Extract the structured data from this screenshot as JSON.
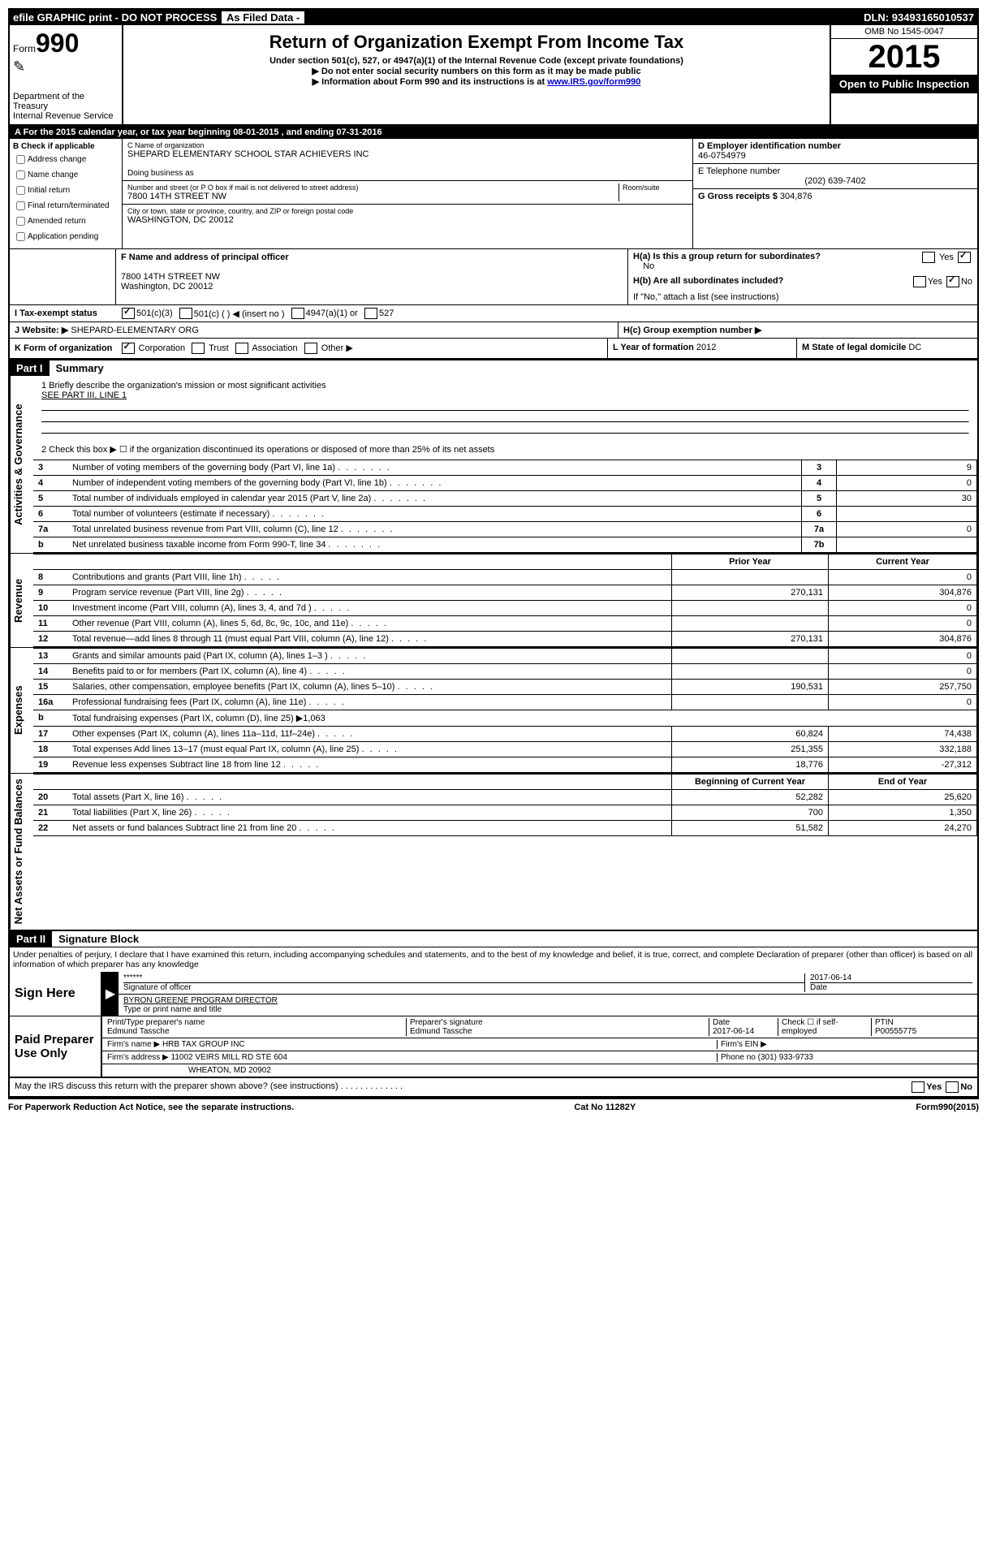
{
  "topbar": {
    "efile": "efile GRAPHIC print - DO NOT PROCESS",
    "asfiled": "As Filed Data -",
    "dln_label": "DLN:",
    "dln": "93493165010537"
  },
  "header": {
    "form_label": "Form",
    "form_num": "990",
    "dept1": "Department of the Treasury",
    "dept2": "Internal Revenue Service",
    "title": "Return of Organization Exempt From Income Tax",
    "sub1": "Under section 501(c), 527, or 4947(a)(1) of the Internal Revenue Code (except private foundations)",
    "sub2": "▶ Do not enter social security numbers on this form as it may be made public",
    "sub3": "▶ Information about Form 990 and its instructions is at ",
    "irs_link": "www.IRS.gov/form990",
    "omb": "OMB No 1545-0047",
    "year": "2015",
    "open": "Open to Public Inspection"
  },
  "lineA": "A  For the 2015 calendar year, or tax year beginning 08-01-2015    , and ending 07-31-2016",
  "colB": {
    "title": "B Check if applicable",
    "c1": "Address change",
    "c2": "Name change",
    "c3": "Initial return",
    "c4": "Final return/terminated",
    "c5": "Amended return",
    "c6": "Application pending"
  },
  "colC": {
    "name_label": "C Name of organization",
    "name": "SHEPARD ELEMENTARY SCHOOL STAR ACHIEVERS INC",
    "dba_label": "Doing business as",
    "addr_label": "Number and street (or P O  box if mail is not delivered to street address)",
    "room_label": "Room/suite",
    "addr": "7800 14TH STREET NW",
    "city_label": "City or town, state or province, country, and ZIP or foreign postal code",
    "city": "WASHINGTON, DC  20012"
  },
  "colD": {
    "d_label": "D Employer identification number",
    "ein": "46-0754979",
    "e_label": "E Telephone number",
    "phone": "(202) 639-7402",
    "g_label": "G Gross receipts $",
    "g_val": "304,876"
  },
  "fBlock": {
    "f_label": "F Name and address of principal officer",
    "addr1": "7800 14TH STREET NW",
    "addr2": "Washington, DC  20012"
  },
  "hBlock": {
    "ha": "H(a)  Is this a group return for subordinates?",
    "ha_no": "No",
    "hb": "H(b)  Are all subordinates included?",
    "hb_note": "If \"No,\" attach a list  (see instructions)",
    "hc": "H(c)  Group exemption number ▶",
    "yes": "Yes",
    "no": "No"
  },
  "lineI": {
    "label": "I  Tax-exempt status",
    "c1": "501(c)(3)",
    "c2": "501(c) (   ) ◀ (insert no )",
    "c3": "4947(a)(1) or",
    "c4": "527"
  },
  "lineJ": {
    "label": "J  Website: ▶",
    "val": "SHEPARD-ELEMENTARY ORG"
  },
  "lineK": {
    "label": "K Form of organization",
    "c1": "Corporation",
    "c2": "Trust",
    "c3": "Association",
    "c4": "Other ▶"
  },
  "lineL": {
    "label": "L Year of formation",
    "val": "2012"
  },
  "lineM": {
    "label": "M State of legal domicile",
    "val": "DC"
  },
  "part1": {
    "header": "Part I",
    "title": "Summary",
    "q1": "1 Briefly describe the organization's mission or most significant activities",
    "q1_val": "SEE PART III, LINE 1",
    "q2": "2  Check this box ▶ ☐ if the organization discontinued its operations or disposed of more than 25% of its net assets",
    "rows_ag": [
      {
        "n": "3",
        "label": "Number of voting members of the governing body (Part VI, line 1a)",
        "box": "3",
        "val": "9"
      },
      {
        "n": "4",
        "label": "Number of independent voting members of the governing body (Part VI, line 1b)",
        "box": "4",
        "val": "0"
      },
      {
        "n": "5",
        "label": "Total number of individuals employed in calendar year 2015 (Part V, line 2a)",
        "box": "5",
        "val": "30"
      },
      {
        "n": "6",
        "label": "Total number of volunteers (estimate if necessary)",
        "box": "6",
        "val": ""
      },
      {
        "n": "7a",
        "label": "Total unrelated business revenue from Part VIII, column (C), line 12",
        "box": "7a",
        "val": "0"
      },
      {
        "n": "b",
        "label": "Net unrelated business taxable income from Form 990-T, line 34",
        "box": "7b",
        "val": ""
      }
    ],
    "prior_hdr": "Prior Year",
    "curr_hdr": "Current Year",
    "rows_rev": [
      {
        "n": "8",
        "label": "Contributions and grants (Part VIII, line 1h)",
        "prior": "",
        "curr": "0"
      },
      {
        "n": "9",
        "label": "Program service revenue (Part VIII, line 2g)",
        "prior": "270,131",
        "curr": "304,876"
      },
      {
        "n": "10",
        "label": "Investment income (Part VIII, column (A), lines 3, 4, and 7d )",
        "prior": "",
        "curr": "0"
      },
      {
        "n": "11",
        "label": "Other revenue (Part VIII, column (A), lines 5, 6d, 8c, 9c, 10c, and 11e)",
        "prior": "",
        "curr": "0"
      },
      {
        "n": "12",
        "label": "Total revenue—add lines 8 through 11 (must equal Part VIII, column (A), line 12)",
        "prior": "270,131",
        "curr": "304,876"
      }
    ],
    "rows_exp": [
      {
        "n": "13",
        "label": "Grants and similar amounts paid (Part IX, column (A), lines 1–3 )",
        "prior": "",
        "curr": "0"
      },
      {
        "n": "14",
        "label": "Benefits paid to or for members (Part IX, column (A), line 4)",
        "prior": "",
        "curr": "0"
      },
      {
        "n": "15",
        "label": "Salaries, other compensation, employee benefits (Part IX, column (A), lines 5–10)",
        "prior": "190,531",
        "curr": "257,750"
      },
      {
        "n": "16a",
        "label": "Professional fundraising fees (Part IX, column (A), line 11e)",
        "prior": "",
        "curr": "0"
      },
      {
        "n": "b",
        "label": "Total fundraising expenses (Part IX, column (D), line 25) ▶1,063",
        "prior": null,
        "curr": null
      },
      {
        "n": "17",
        "label": "Other expenses (Part IX, column (A), lines 11a–11d, 11f–24e)",
        "prior": "60,824",
        "curr": "74,438"
      },
      {
        "n": "18",
        "label": "Total expenses  Add lines 13–17 (must equal Part IX, column (A), line 25)",
        "prior": "251,355",
        "curr": "332,188"
      },
      {
        "n": "19",
        "label": "Revenue less expenses  Subtract line 18 from line 12",
        "prior": "18,776",
        "curr": "-27,312"
      }
    ],
    "begin_hdr": "Beginning of Current Year",
    "end_hdr": "End of Year",
    "rows_na": [
      {
        "n": "20",
        "label": "Total assets (Part X, line 16)",
        "prior": "52,282",
        "curr": "25,620"
      },
      {
        "n": "21",
        "label": "Total liabilities (Part X, line 26)",
        "prior": "700",
        "curr": "1,350"
      },
      {
        "n": "22",
        "label": "Net assets or fund balances  Subtract line 21 from line 20",
        "prior": "51,582",
        "curr": "24,270"
      }
    ]
  },
  "part2": {
    "header": "Part II",
    "title": "Signature Block",
    "perjury": "Under penalties of perjury, I declare that I have examined this return, including accompanying schedules and statements, and to the best of my knowledge and belief, it is true, correct, and complete  Declaration of preparer (other than officer) is based on all information of which preparer has any knowledge"
  },
  "sign": {
    "label": "Sign Here",
    "stars": "******",
    "sig_label": "Signature of officer",
    "date": "2017-06-14",
    "date_label": "Date",
    "name": "BYRON GREENE PROGRAM DIRECTOR",
    "name_label": "Type or print name and title"
  },
  "paid": {
    "label": "Paid Preparer Use Only",
    "h1": "Print/Type preparer's name",
    "v1": "Edmund Tassche",
    "h2": "Preparer's signature",
    "v2": "Edmund Tassche",
    "h3": "Date",
    "v3": "2017-06-14",
    "h4": "Check ☐ if self-employed",
    "h5": "PTIN",
    "v5": "P00555775",
    "firm_name_l": "Firm's name      ▶",
    "firm_name": "HRB TAX GROUP INC",
    "firm_ein_l": "Firm's EIN ▶",
    "firm_addr_l": "Firm's address ▶",
    "firm_addr1": "11002 VEIRS MILL RD STE 604",
    "firm_addr2": "WHEATON, MD  20902",
    "phone_l": "Phone no",
    "phone": "(301) 933-9733"
  },
  "irs_discuss": "May the IRS discuss this return with the preparer shown above? (see instructions)",
  "footer": {
    "left": "For Paperwork Reduction Act Notice, see the separate instructions.",
    "mid": "Cat No  11282Y",
    "right": "Form 990 (2015)"
  },
  "labels_vert": {
    "ag": "Activities & Governance",
    "rev": "Revenue",
    "exp": "Expenses",
    "na": "Net Assets or Fund Balances"
  }
}
